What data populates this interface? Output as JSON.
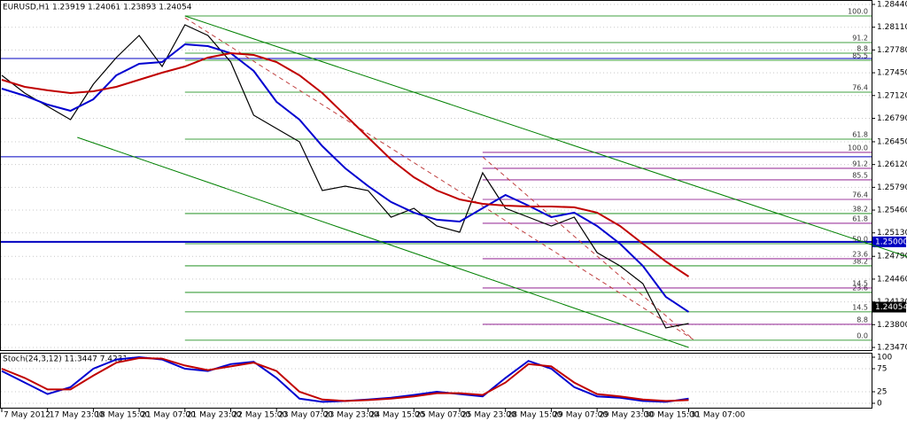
{
  "chart_data": [
    {
      "type": "line",
      "title": "EURUSD,H1  1.23919 1.24061 1.23893 1.24054",
      "categories": [
        "7 May 2012",
        null,
        "17 May 23:00",
        null,
        "18 May 15:00",
        null,
        "21 May 07:00",
        null,
        "21 May 23:00",
        null,
        "22 May 15:00",
        null,
        "23 May 07:00",
        null,
        "23 May 23:00",
        null,
        "24 May 15:00",
        null,
        "25 May 07:00",
        null,
        "25 May 23:00",
        null,
        "28 May 15:00",
        null,
        "29 May 07:00",
        null,
        "29 May 23:00",
        null,
        "30 May 15:00",
        null,
        "31 May 07:00"
      ],
      "ylim": [
        1.2347,
        1.2844
      ],
      "yticks": [
        {
          "value": 1.2844,
          "label": "1.28440"
        },
        {
          "value": 1.2811,
          "label": "1.28110"
        },
        {
          "value": 1.2778,
          "label": "1.27780"
        },
        {
          "value": 1.2745,
          "label": "1.27450"
        },
        {
          "value": 1.2712,
          "label": "1.27120"
        },
        {
          "value": 1.2679,
          "label": "1.26790"
        },
        {
          "value": 1.2645,
          "label": "1.26450"
        },
        {
          "value": 1.2612,
          "label": "1.26120"
        },
        {
          "value": 1.2579,
          "label": "1.25790"
        },
        {
          "value": 1.2546,
          "label": "1.25460"
        },
        {
          "value": 1.2513,
          "label": "1.25130"
        },
        {
          "value": 1.2479,
          "label": "1.24790"
        },
        {
          "value": 1.2446,
          "label": "1.24460"
        },
        {
          "value": 1.2413,
          "label": "1.24130"
        },
        {
          "value": 1.238,
          "label": "1.23800"
        },
        {
          "value": 1.2347,
          "label": "1.23470"
        }
      ],
      "grid": true,
      "series": [
        {
          "color": "#000000",
          "values": [
            1.27413,
            1.27156,
            1.26963,
            1.26771,
            1.27284,
            1.2767,
            1.27991,
            1.27541,
            1.28145,
            1.27991,
            1.27605,
            1.26835,
            1.26642,
            1.2645,
            1.25743,
            1.25807,
            1.25743,
            1.25358,
            1.25486,
            1.2523,
            1.2514,
            1.26,
            1.25486,
            1.25358,
            1.2523,
            1.25358,
            1.24844,
            1.24652,
            1.24395,
            1.23753,
            1.23817
          ]
        },
        {
          "color": "#0000d0",
          "values": [
            1.2722,
            1.27117,
            1.26989,
            1.26899,
            1.27066,
            1.27413,
            1.2758,
            1.27605,
            1.27862,
            1.27837,
            1.27734,
            1.27477,
            1.27028,
            1.26771,
            1.26386,
            1.26065,
            1.25808,
            1.25577,
            1.25423,
            1.2532,
            1.25294,
            1.25487,
            1.25679,
            1.25525,
            1.25358,
            1.25423,
            1.2523,
            1.24973,
            1.24652,
            1.24203,
            1.23985
          ]
        },
        {
          "color": "#c00000",
          "values": [
            1.27349,
            1.27246,
            1.27195,
            1.27156,
            1.27182,
            1.27246,
            1.27349,
            1.27451,
            1.27541,
            1.2767,
            1.27734,
            1.27708,
            1.27605,
            1.27413,
            1.27156,
            1.26835,
            1.26514,
            1.26193,
            1.25936,
            1.25744,
            1.25615,
            1.25551,
            1.25525,
            1.25512,
            1.25512,
            1.255,
            1.25423,
            1.2523,
            1.24973,
            1.24716,
            1.24498
          ]
        }
      ],
      "hlines": [
        {
          "value": 1.27657,
          "color": "#0000c0"
        },
        {
          "value": 1.26232,
          "color": "#0000c0"
        },
        {
          "value": 1.25,
          "label": "1.25000",
          "color": "#0000c0"
        }
      ],
      "last_price": {
        "value": 1.24054,
        "label": "1.24054"
      },
      "fib_levels": [
        {
          "value": 1.28273,
          "label": "100.0",
          "color": "#008000",
          "x0": 8
        },
        {
          "value": 1.27888,
          "label": "91.2",
          "color": "#008000",
          "x0": 8
        },
        {
          "value": 1.27734,
          "label": "8.8",
          "color": "#008000",
          "x0": 8
        },
        {
          "value": 1.27631,
          "label": "85.5",
          "color": "#008000",
          "x0": 8
        },
        {
          "value": 1.27169,
          "label": "76.4",
          "color": "#008000",
          "x0": 8
        },
        {
          "value": 1.26488,
          "label": "61.8",
          "color": "#008000",
          "x0": 8
        },
        {
          "value": 1.24973,
          "label": "50.0",
          "color": "#008000",
          "x0": 8
        },
        {
          "value": 1.24652,
          "label": "38.2",
          "color": "#008000",
          "x0": 8
        },
        {
          "value": 1.24267,
          "label": "23.6",
          "color": "#008000",
          "x0": 8
        },
        {
          "value": 1.23985,
          "label": "14.5",
          "color": "#008000",
          "x0": 8
        },
        {
          "value": 1.23574,
          "label": "0.0",
          "color": "#008000",
          "x0": 8
        },
        {
          "value": 1.26296,
          "label": "100.0",
          "color": "#800080",
          "x0": 21
        },
        {
          "value": 1.26065,
          "label": "91.2",
          "color": "#800080",
          "x0": 21
        },
        {
          "value": 1.25898,
          "label": "85.5",
          "color": "#800080",
          "x0": 21
        },
        {
          "value": 1.25615,
          "label": "76.4",
          "color": "#800080",
          "x0": 21
        },
        {
          "value": 1.2541,
          "label": "38.2",
          "color": "#008000",
          "x0": 8
        },
        {
          "value": 1.25269,
          "label": "61.8",
          "color": "#800080",
          "x0": 21
        },
        {
          "value": 1.24755,
          "label": "23.6",
          "color": "#800080",
          "x0": 21
        },
        {
          "value": 1.24331,
          "label": "14.5",
          "color": "#800080",
          "x0": 21
        },
        {
          "value": 1.23805,
          "label": "8.8",
          "color": "#800080",
          "x0": 21
        }
      ],
      "trendlines": [
        {
          "points": [
            [
              8,
              1.28273
            ],
            [
              39.6,
              1.2478
            ]
          ],
          "color": "#008000",
          "dashed": false
        },
        {
          "points": [
            [
              3.3,
              1.26514
            ],
            [
              30,
              1.2347
            ]
          ],
          "color": "#008000",
          "dashed": false
        },
        {
          "points": [
            [
              8,
              1.28247
            ],
            [
              30.2,
              1.23586
            ]
          ],
          "color": "#c04040",
          "dashed": true
        },
        {
          "points": [
            [
              21,
              1.26232
            ],
            [
              30.2,
              1.23586
            ]
          ],
          "color": "#c04040",
          "dashed": true
        }
      ]
    },
    {
      "type": "line",
      "title": "Stoch(24,3,12) 11.3447 7.4231",
      "ylim": [
        0,
        100
      ],
      "yticks": [
        0,
        25,
        75,
        100
      ],
      "grid": true,
      "series": [
        {
          "color": "#0000d0",
          "values": [
            70,
            45,
            20,
            35,
            75,
            95,
            100,
            95,
            75,
            70,
            85,
            90,
            55,
            10,
            3,
            5,
            8,
            12,
            18,
            25,
            20,
            15,
            55,
            92,
            75,
            35,
            15,
            12,
            5,
            3,
            10
          ]
        },
        {
          "color": "#c00000",
          "values": [
            75,
            55,
            30,
            30,
            60,
            88,
            98,
            97,
            82,
            72,
            80,
            88,
            70,
            25,
            8,
            5,
            7,
            10,
            15,
            22,
            22,
            18,
            45,
            85,
            80,
            45,
            20,
            15,
            8,
            5,
            7
          ]
        }
      ]
    }
  ]
}
